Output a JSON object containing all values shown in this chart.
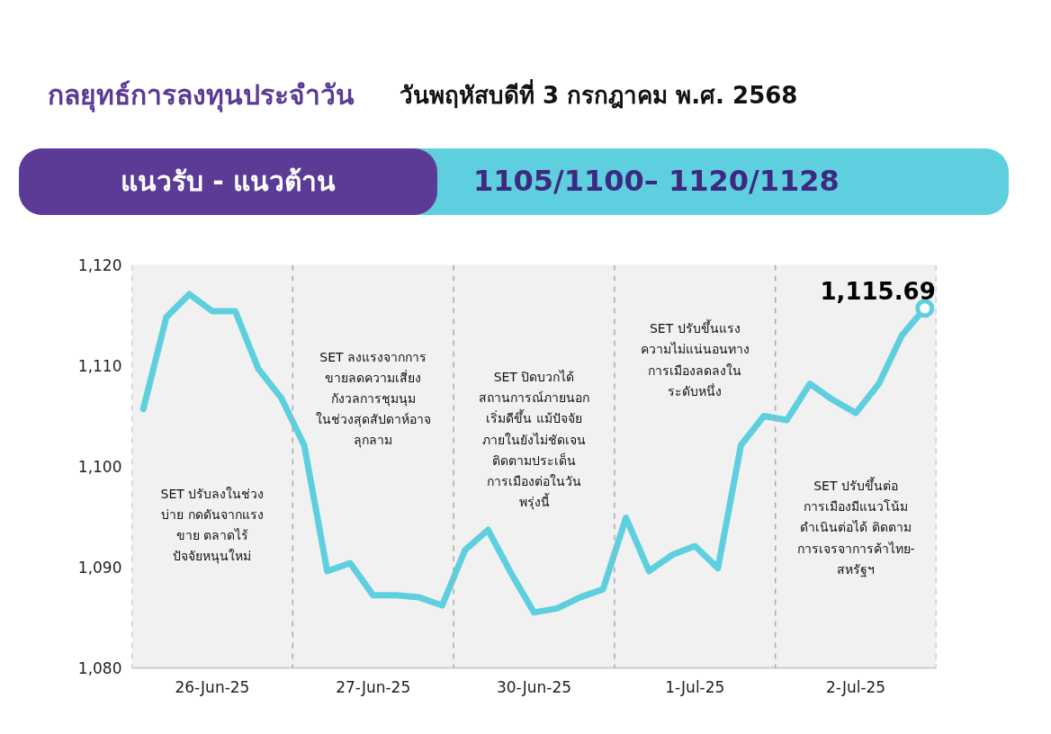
{
  "chart_data": {
    "type": "line",
    "title": "กลยุทธ์การลงทุนประจำวัน",
    "subtitle": "วันพฤหัสบดีที่ 3 กรกฎาคม พ.ศ. 2568",
    "categories": [
      null,
      null,
      null,
      "26-Jun-25",
      null,
      null,
      null,
      null,
      null,
      null,
      "27-Jun-25",
      null,
      null,
      null,
      null,
      null,
      null,
      "30-Jun-25",
      null,
      null,
      null,
      null,
      null,
      null,
      "1-Jul-25",
      null,
      null,
      null,
      null,
      null,
      null,
      "2-Jul-25",
      null,
      null,
      null
    ],
    "series": [
      {
        "color": "#5ecfdf",
        "values": [
          1105.7,
          1114.8,
          1117.1,
          1115.4,
          1115.4,
          1109.7,
          1106.8,
          1102.1,
          1089.6,
          1090.4,
          1087.2,
          1087.2,
          1087.0,
          1086.2,
          1091.7,
          1093.7,
          1089.4,
          1085.5,
          1085.9,
          1087.0,
          1087.8,
          1094.9,
          1089.6,
          1091.2,
          1092.1,
          1089.9,
          1102.1,
          1105.0,
          1104.6,
          1108.2,
          1106.6,
          1105.3,
          1108.2,
          1113.0,
          1115.69
        ]
      }
    ],
    "ylim": [
      1080,
      1120
    ],
    "yticks": [
      {
        "value": 1080,
        "label": "1,080"
      },
      {
        "value": 1090,
        "label": "1,090"
      },
      {
        "value": 1100,
        "label": "1,100"
      },
      {
        "value": 1110,
        "label": "1,110"
      },
      {
        "value": 1120,
        "label": "1,120"
      }
    ],
    "grid": false,
    "line_style": "solid",
    "marker": "none",
    "annotations": [
      "แนวรับ - แนวต้าน",
      "1105/1100– 1120/1128",
      "SET ปรับลงในช่วง\nบ่าย กดดันจากแรง\nขาย ตลาดไร้\nปัจจัยหนุนใหม่",
      "SET ลงแรงจากการ\nขายลดความเสี่ยง\nกังวลการชุมนุม\nในช่วงสุดสัปดาห์อาจ\nลุกลาม",
      "SET ปิดบวกได้\nสถานการณ์ภายนอก\nเริ่มดีขึ้น แม้ปัจจัย\nภายในยังไม่ชัดเจน\nติดตามประเด็น\nการเมืองต่อในวัน\nพรุ่งนี้",
      "SET ปรับขึ้นแรง\nความไม่แน่นอนทาง\nการเมืองลดลงใน\nระดับหนึ่ง",
      "SET ปรับขึ้นต่อ\nการเมืองมีแนวโน้ม\nดำเนินต่อได้ ติดตาม\nการเจรจาการค้าไทย-\nสหรัฐฯ",
      "1,115.69"
    ]
  }
}
